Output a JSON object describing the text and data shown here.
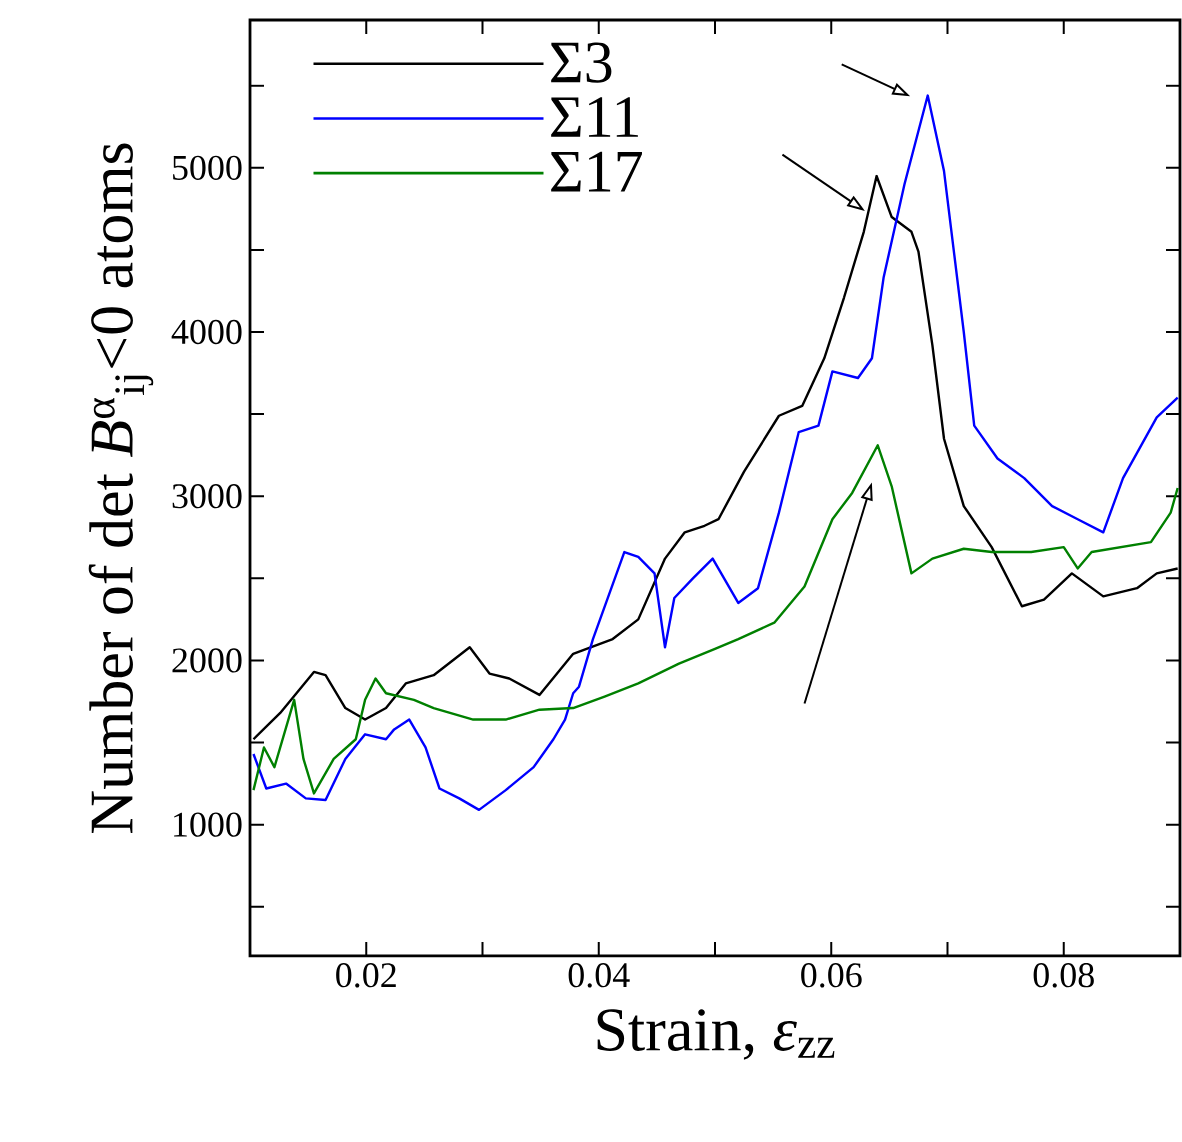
{
  "chart_data": {
    "type": "line",
    "xlabel": "Strain, *ε*$_{zz}$",
    "ylabel": "Number of det *B*$^{α}$$_{ij}$<0 atoms",
    "xlim": [
      0.01,
      0.09
    ],
    "ylim": [
      200,
      5900
    ],
    "xticks": [
      0.02,
      {
        "value": 0.03,
        "label": null
      },
      0.04,
      {
        "value": 0.05,
        "label": null
      },
      0.06,
      {
        "value": 0.07,
        "label": null
      },
      0.08
    ],
    "yticks": [
      {
        "value": 500,
        "label": null
      },
      1000,
      {
        "value": 1500,
        "label": null
      },
      2000,
      {
        "value": 2500,
        "label": null
      },
      3000,
      {
        "value": 3500,
        "label": null
      },
      4000,
      {
        "value": 4500,
        "label": null
      },
      5000,
      {
        "value": 5500,
        "label": null
      }
    ],
    "legend": "top left",
    "grid": false,
    "marker": "none",
    "line_style": "solid",
    "series": [
      {
        "name": "Σ3",
        "color": "#000000",
        "x": [
          0.0103,
          0.0126,
          0.0155,
          0.0165,
          0.0182,
          0.0199,
          0.0217,
          0.0234,
          0.0258,
          0.0289,
          0.0306,
          0.0323,
          0.0349,
          0.0378,
          0.0412,
          0.0434,
          0.0457,
          0.0474,
          0.0491,
          0.0503,
          0.0525,
          0.0555,
          0.0575,
          0.0594,
          0.0611,
          0.0628,
          0.0639,
          0.0652,
          0.0669,
          0.0675,
          0.0687,
          0.0697,
          0.0714,
          0.0738,
          0.0764,
          0.0783,
          0.0807,
          0.0834,
          0.0863,
          0.088,
          0.0898
        ],
        "values": [
          1520,
          1680,
          1930,
          1910,
          1710,
          1640,
          1710,
          1860,
          1910,
          2080,
          1920,
          1890,
          1790,
          2040,
          2130,
          2250,
          2620,
          2780,
          2820,
          2860,
          3150,
          3490,
          3550,
          3840,
          4210,
          4610,
          4950,
          4700,
          4610,
          4490,
          3920,
          3350,
          2940,
          2690,
          2330,
          2370,
          2530,
          2390,
          2440,
          2530,
          2560
        ]
      },
      {
        "name": "Σ11",
        "color": "#0000ff",
        "x": [
          0.0103,
          0.0114,
          0.0131,
          0.0148,
          0.0165,
          0.0182,
          0.0199,
          0.0217,
          0.0224,
          0.0237,
          0.0251,
          0.0263,
          0.028,
          0.0297,
          0.032,
          0.0344,
          0.0361,
          0.0371,
          0.0378,
          0.0383,
          0.0395,
          0.0422,
          0.0434,
          0.0448,
          0.0457,
          0.0465,
          0.0481,
          0.0498,
          0.052,
          0.0537,
          0.0555,
          0.0572,
          0.0589,
          0.0601,
          0.0623,
          0.0635,
          0.0645,
          0.0663,
          0.0683,
          0.0697,
          0.0714,
          0.0723,
          0.0743,
          0.0766,
          0.079,
          0.0812,
          0.0834,
          0.0851,
          0.088,
          0.0898
        ],
        "values": [
          1430,
          1220,
          1250,
          1160,
          1150,
          1400,
          1550,
          1520,
          1580,
          1640,
          1470,
          1220,
          1160,
          1090,
          1210,
          1350,
          1520,
          1640,
          1800,
          1840,
          2130,
          2660,
          2630,
          2530,
          2080,
          2380,
          2500,
          2620,
          2350,
          2440,
          2900,
          3390,
          3430,
          3760,
          3720,
          3840,
          4330,
          4900,
          5440,
          4980,
          4000,
          3430,
          3230,
          3110,
          2940,
          2860,
          2780,
          3110,
          3480,
          3600
        ]
      },
      {
        "name": "Σ17",
        "color": "#008000",
        "x": [
          0.0103,
          0.0112,
          0.0121,
          0.0138,
          0.0146,
          0.0155,
          0.0172,
          0.0191,
          0.0199,
          0.0208,
          0.0217,
          0.0241,
          0.0258,
          0.0292,
          0.032,
          0.0349,
          0.0378,
          0.0405,
          0.0434,
          0.0469,
          0.05,
          0.052,
          0.0551,
          0.0577,
          0.0601,
          0.0618,
          0.064,
          0.0652,
          0.0669,
          0.0687,
          0.0714,
          0.0738,
          0.0772,
          0.08,
          0.0812,
          0.0824,
          0.0875,
          0.0892,
          0.0898
        ],
        "values": [
          1210,
          1470,
          1350,
          1760,
          1400,
          1190,
          1400,
          1520,
          1760,
          1890,
          1800,
          1760,
          1710,
          1640,
          1640,
          1700,
          1710,
          1780,
          1860,
          1980,
          2070,
          2130,
          2230,
          2450,
          2860,
          3020,
          3310,
          3060,
          2530,
          2620,
          2680,
          2660,
          2660,
          2690,
          2560,
          2660,
          2720,
          2900,
          3050
        ]
      }
    ]
  }
}
